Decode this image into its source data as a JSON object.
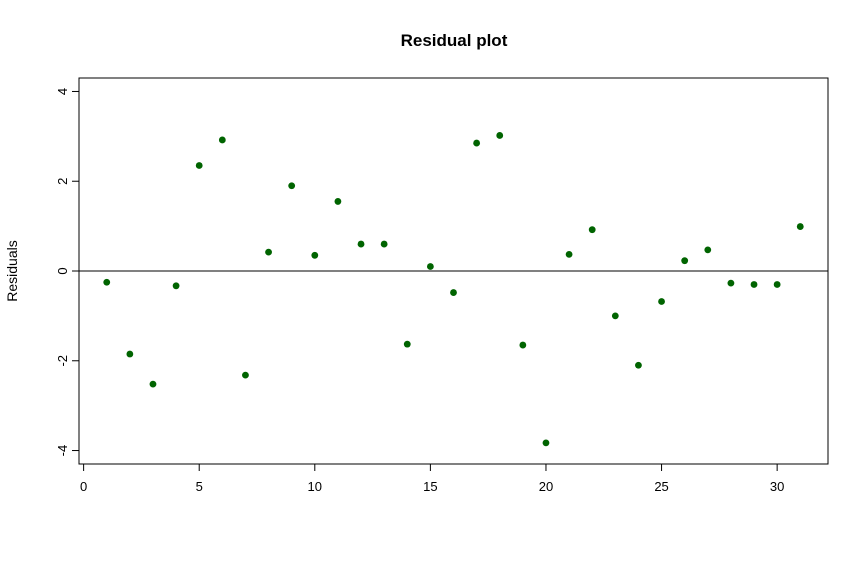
{
  "chart_data": {
    "type": "scatter",
    "title": "Residual plot",
    "xlabel": "",
    "ylabel": "Residuals",
    "xlim": [
      -0.2,
      32.2
    ],
    "ylim": [
      -4.3,
      4.3
    ],
    "x_ticks": [
      0,
      5,
      10,
      15,
      20,
      25,
      30
    ],
    "y_ticks": [
      -4,
      -2,
      0,
      2,
      4
    ],
    "hline": 0,
    "grid": false,
    "point_color": "#006400",
    "series": [
      {
        "x": [
          1,
          2,
          3,
          4,
          5,
          6,
          7,
          8,
          9,
          10,
          11,
          12,
          13,
          14,
          15,
          16,
          17,
          18,
          19,
          20,
          21,
          22,
          23,
          24,
          25,
          26,
          27,
          28,
          29,
          30,
          31
        ],
        "values": [
          -0.25,
          -1.85,
          -2.52,
          -0.33,
          2.35,
          2.92,
          -2.32,
          0.42,
          1.9,
          0.35,
          1.55,
          0.6,
          0.6,
          -1.63,
          0.1,
          -0.48,
          2.85,
          3.02,
          -1.65,
          -3.83,
          0.37,
          0.92,
          -1.0,
          -2.1,
          -0.68,
          0.23,
          0.47,
          -0.27,
          -0.3,
          -0.3,
          0.99
        ]
      }
    ]
  }
}
